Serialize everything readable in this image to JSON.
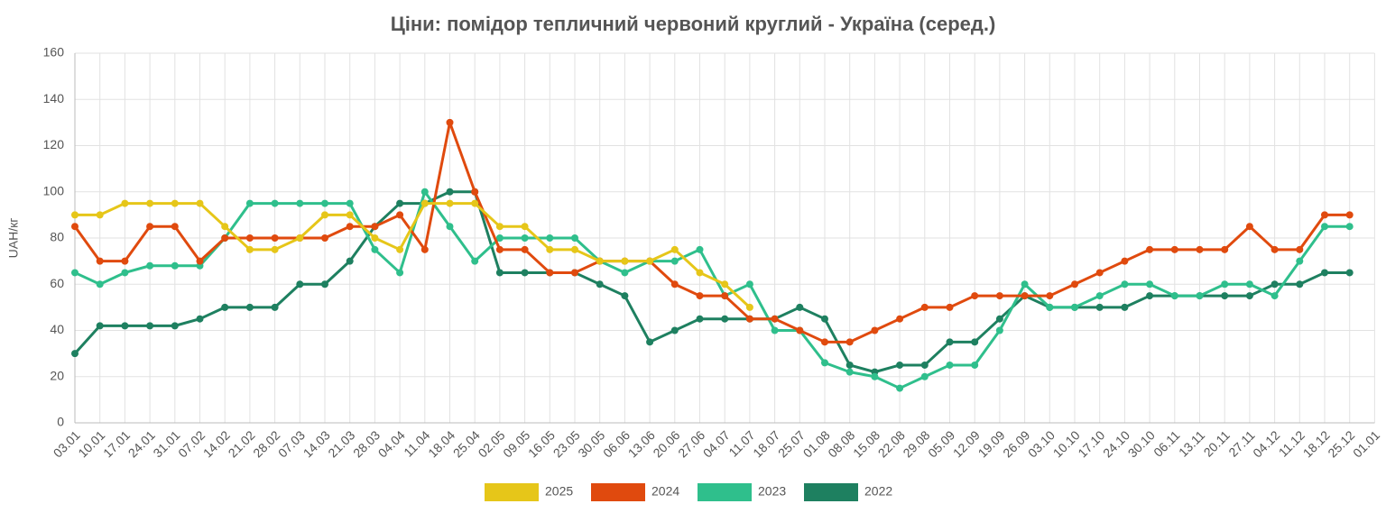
{
  "chart_data": {
    "type": "line",
    "title": "Ціни: помідор тепличний червоний круглий - Україна (серед.)",
    "y_label": "UAH/кг",
    "categories": [
      "03.01",
      "10.01",
      "17.01",
      "24.01",
      "31.01",
      "07.02",
      "14.02",
      "21.02",
      "28.02",
      "07.03",
      "14.03",
      "21.03",
      "28.03",
      "04.04",
      "11.04",
      "18.04",
      "25.04",
      "02.05",
      "09.05",
      "16.05",
      "23.05",
      "30.05",
      "06.06",
      "13.06",
      "20.06",
      "27.06",
      "04.07",
      "11.07",
      "18.07",
      "25.07",
      "01.08",
      "08.08",
      "15.08",
      "22.08",
      "29.08",
      "05.09",
      "12.09",
      "19.09",
      "26.09",
      "03.10",
      "10.10",
      "17.10",
      "24.10",
      "30.10",
      "06.11",
      "13.11",
      "20.11",
      "27.11",
      "04.12",
      "11.12",
      "18.12",
      "25.12",
      "01.01"
    ],
    "series": [
      {
        "name": "2025",
        "color": "#e6c619",
        "values": [
          90,
          90,
          95,
          95,
          95,
          95,
          85,
          75,
          75,
          80,
          90,
          90,
          80,
          75,
          95,
          95,
          95,
          85,
          85,
          75,
          75,
          70,
          70,
          70,
          75,
          65,
          60,
          50,
          null,
          null,
          null,
          null,
          null,
          null,
          null,
          null,
          null,
          null,
          null,
          null,
          null,
          null,
          null,
          null,
          null,
          null,
          null,
          null,
          null,
          null,
          null,
          null,
          null
        ]
      },
      {
        "name": "2024",
        "color": "#e04a0e",
        "values": [
          85,
          70,
          70,
          85,
          85,
          70,
          80,
          80,
          80,
          80,
          80,
          85,
          85,
          90,
          75,
          130,
          100,
          75,
          75,
          65,
          65,
          70,
          70,
          70,
          60,
          55,
          55,
          45,
          45,
          40,
          35,
          35,
          40,
          45,
          50,
          50,
          55,
          55,
          55,
          55,
          60,
          65,
          70,
          75,
          75,
          75,
          75,
          85,
          75,
          75,
          90,
          90,
          null
        ]
      },
      {
        "name": "2023",
        "color": "#2fbf8c",
        "values": [
          65,
          60,
          65,
          68,
          68,
          68,
          80,
          95,
          95,
          95,
          95,
          95,
          75,
          65,
          100,
          85,
          70,
          80,
          80,
          80,
          80,
          70,
          65,
          70,
          70,
          75,
          55,
          60,
          40,
          40,
          26,
          22,
          20,
          15,
          20,
          25,
          25,
          40,
          60,
          50,
          50,
          55,
          60,
          60,
          55,
          55,
          60,
          60,
          55,
          70,
          85,
          85,
          null
        ]
      },
      {
        "name": "2022",
        "color": "#1e8060",
        "values": [
          30,
          42,
          42,
          42,
          42,
          45,
          50,
          50,
          50,
          60,
          60,
          70,
          85,
          95,
          95,
          100,
          100,
          65,
          65,
          65,
          65,
          60,
          55,
          35,
          40,
          45,
          45,
          45,
          45,
          50,
          45,
          25,
          22,
          25,
          25,
          35,
          35,
          45,
          55,
          50,
          50,
          50,
          50,
          55,
          55,
          55,
          55,
          55,
          60,
          60,
          65,
          65,
          null
        ]
      }
    ],
    "ylim": [
      0,
      160
    ],
    "yticks": [
      0,
      20,
      40,
      60,
      80,
      100,
      120,
      140,
      160
    ],
    "grid": true,
    "legend": "bottom"
  }
}
